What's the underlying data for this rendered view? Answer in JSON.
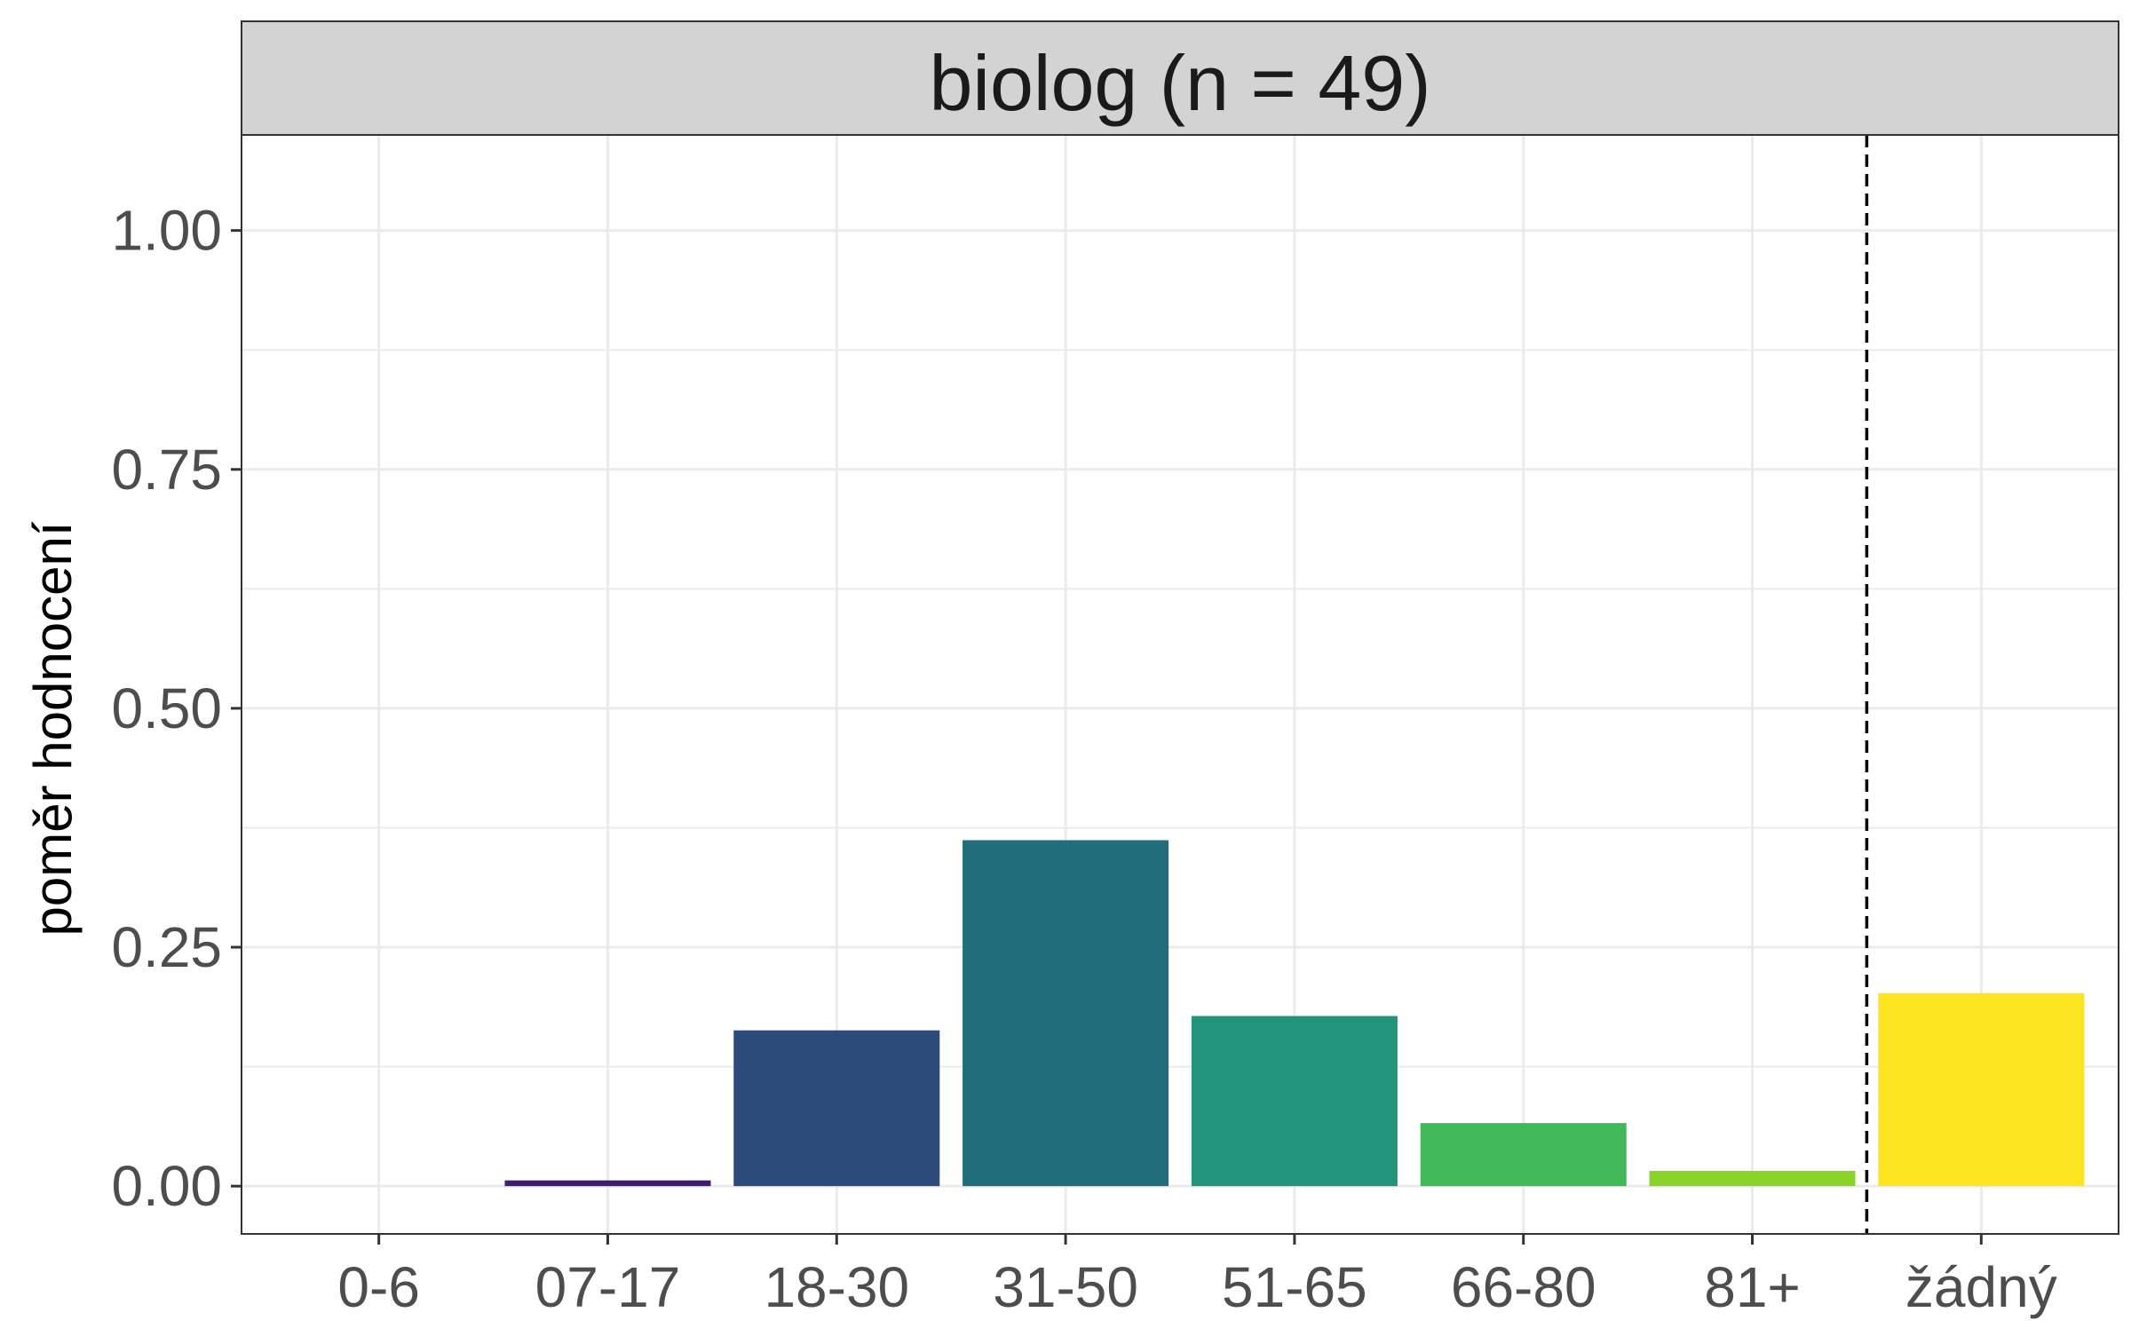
{
  "chart_data": {
    "type": "bar",
    "facet_title": "biolog (n = 49)",
    "ylabel": "poměr hodnocení",
    "xlabel": "",
    "categories": [
      "0-6",
      "07-17",
      "18-30",
      "31-50",
      "51-65",
      "66-80",
      "81+",
      "žádný"
    ],
    "values": [
      0.0,
      0.006,
      0.163,
      0.362,
      0.178,
      0.066,
      0.016,
      0.202
    ],
    "colors": [
      "#440154",
      "#3b1f6e",
      "#2c4a7b",
      "#216e7a",
      "#21947a",
      "#42b959",
      "#8ad429",
      "#fde421"
    ],
    "ylim": [
      -0.05,
      1.1
    ],
    "yticks": [
      0.0,
      0.25,
      0.5,
      0.75,
      1.0
    ],
    "ytick_labels": [
      "0.00",
      "0.25",
      "0.50",
      "0.75",
      "1.00"
    ],
    "grid": true,
    "reference_line": {
      "x_between": [
        "81+",
        "žádný"
      ],
      "style": "dashed",
      "color": "#000000"
    },
    "strip_color": "#d3d3d3",
    "grid_color": "#ebebeb",
    "tick_label_color": "#4d4d4d",
    "title_color": "#1a1a1a"
  }
}
